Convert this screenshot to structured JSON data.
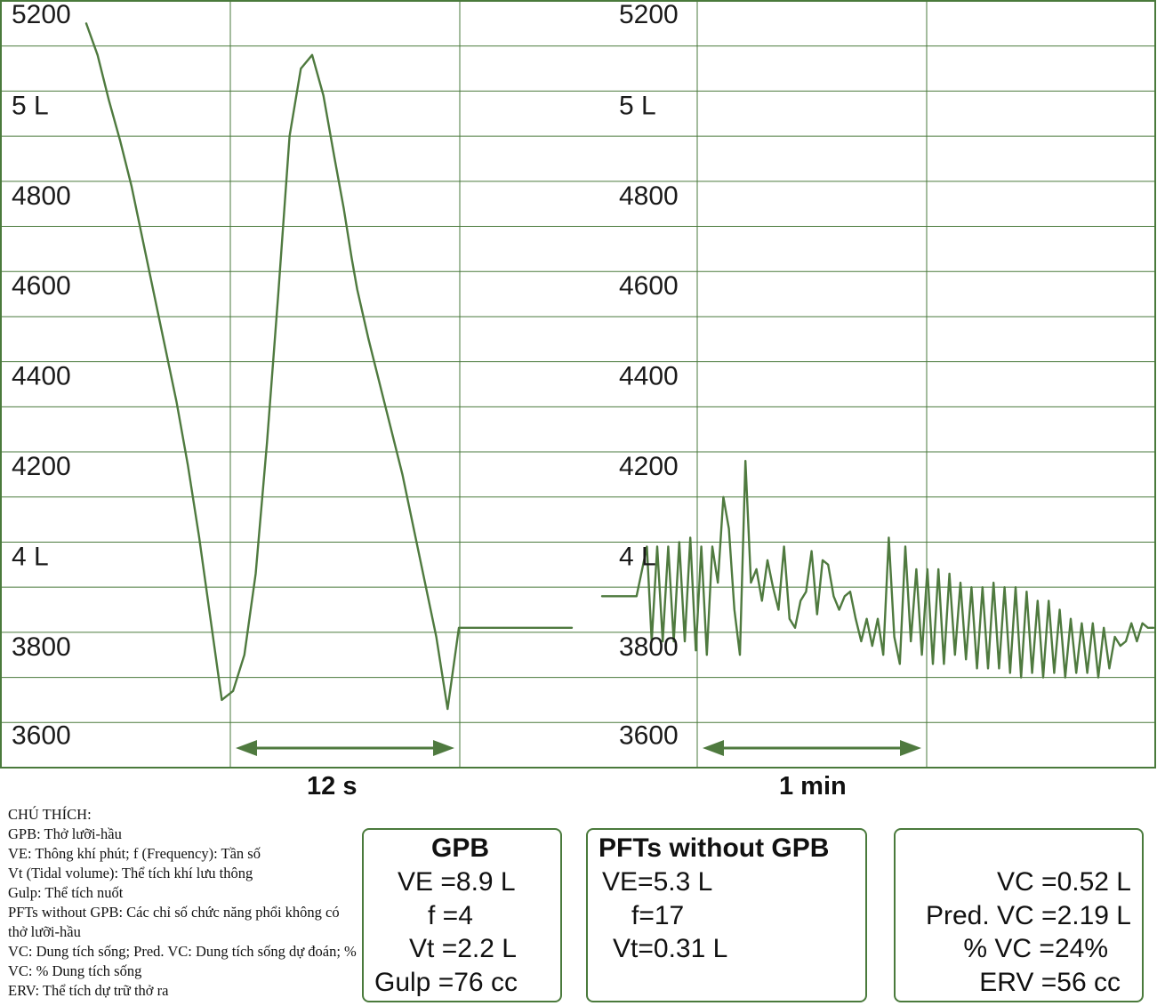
{
  "chart_data": [
    {
      "type": "line",
      "title": "",
      "xlabel": "",
      "ylabel": "",
      "ylim": [
        3550,
        5250
      ],
      "grid": true,
      "y_ticks": [
        "5200",
        "5 L",
        "4800",
        "4600",
        "4400",
        "4200",
        "4 L",
        "3800",
        "3600"
      ],
      "scale_bar": "12 s",
      "series": [
        {
          "x": [
            0,
            1,
            2,
            3,
            4,
            5,
            6,
            7,
            8,
            9,
            10,
            11,
            12,
            13,
            14,
            15,
            16,
            17,
            18,
            19,
            20,
            21,
            22,
            22.8,
            23.5,
            24,
            25,
            26,
            27,
            28,
            29,
            30,
            31,
            32,
            33,
            34,
            35,
            36,
            37,
            38,
            39,
            40,
            41,
            42,
            43
          ],
          "y": [
            5200,
            5130,
            5030,
            4940,
            4840,
            4720,
            4600,
            4480,
            4360,
            4220,
            4060,
            3880,
            3700,
            3720,
            3800,
            3980,
            4270,
            4600,
            4950,
            5100,
            5130,
            5040,
            4900,
            4790,
            4680,
            4610,
            4500,
            4400,
            4300,
            4200,
            4080,
            3960,
            3840,
            3680,
            3860,
            3860,
            3860,
            3860,
            3860,
            3860,
            3860,
            3860,
            3860,
            3860,
            3860
          ]
        }
      ]
    },
    {
      "type": "line",
      "title": "",
      "xlabel": "",
      "ylabel": "",
      "ylim": [
        3550,
        5250
      ],
      "grid": true,
      "y_ticks": [
        "5200",
        "5 L",
        "4800",
        "4600",
        "4400",
        "4200",
        "4 L",
        "3800",
        "3600"
      ],
      "scale_bar": "1 min",
      "series": [
        {
          "x": [
            0,
            0.5,
            0.65,
            0.72,
            0.8,
            0.88,
            0.96,
            1.04,
            1.12,
            1.2,
            1.28,
            1.36,
            1.44,
            1.52,
            1.6,
            1.68,
            1.76,
            1.84,
            1.92,
            2.0,
            2.08,
            2.16,
            2.24,
            2.32,
            2.4,
            2.48,
            2.56,
            2.64,
            2.72,
            2.8,
            2.88,
            2.96,
            3.04,
            3.12,
            3.2,
            3.28,
            3.36,
            3.44,
            3.52,
            3.6,
            3.68,
            3.76,
            3.84,
            3.92,
            4.0,
            4.08,
            4.16,
            4.24,
            4.32,
            4.4,
            4.48,
            4.56,
            4.64,
            4.72,
            4.8,
            4.88,
            4.96,
            5.04,
            5.12,
            5.2,
            5.28,
            5.36,
            5.44,
            5.52,
            5.6,
            5.68,
            5.76,
            5.84,
            5.92,
            6.0,
            6.08,
            6.16,
            6.24,
            6.32,
            6.4,
            6.48,
            6.56,
            6.64,
            6.72,
            6.8,
            6.88,
            6.96,
            7.04,
            7.12,
            7.2,
            7.28,
            7.36,
            7.44,
            7.52,
            7.6,
            7.68,
            7.76,
            7.84,
            7.92,
            8.0
          ],
          "y": [
            3930,
            3930,
            4040,
            3830,
            4040,
            3830,
            4040,
            3830,
            4050,
            3830,
            4060,
            3810,
            4040,
            3800,
            4040,
            3960,
            4150,
            4080,
            3900,
            3800,
            4230,
            3960,
            3990,
            3920,
            4010,
            3950,
            3900,
            4040,
            3880,
            3860,
            3920,
            3940,
            4030,
            3890,
            4010,
            4000,
            3930,
            3900,
            3930,
            3940,
            3880,
            3830,
            3880,
            3820,
            3880,
            3800,
            4060,
            3840,
            3780,
            4040,
            3830,
            3990,
            3800,
            3990,
            3780,
            3990,
            3780,
            3980,
            3800,
            3960,
            3790,
            3950,
            3770,
            3950,
            3770,
            3960,
            3770,
            3950,
            3760,
            3950,
            3750,
            3940,
            3760,
            3920,
            3750,
            3920,
            3760,
            3900,
            3750,
            3880,
            3760,
            3870,
            3760,
            3870,
            3750,
            3860,
            3770,
            3840,
            3820,
            3830,
            3870,
            3830,
            3870,
            3860,
            3860
          ]
        }
      ]
    }
  ],
  "legend": {
    "title": "CHÚ THÍCH:",
    "lines": [
      "GPB: Thở lưỡi-hầu",
      "VE: Thông khí phút; f (Frequency): Tần số",
      "Vt (Tidal volume): Thể tích khí lưu thông",
      "Gulp: Thể tích nuốt",
      "PFTs without GPB: Các chỉ số chức năng phổi không có thở lưỡi-hầu",
      "VC: Dung tích sống; Pred. VC: Dung tích sống dự đoán; % VC: % Dung tích sống",
      "ERV: Thể tích dự trữ thở ra"
    ]
  },
  "boxes": {
    "gpb": {
      "title": "GPB",
      "rows": [
        {
          "k": "VE",
          "v": "8.9 L"
        },
        {
          "k": "f",
          "v": "4"
        },
        {
          "k": "Vt",
          "v": "2.2 L"
        },
        {
          "k": "Gulp",
          "v": "76 cc"
        }
      ]
    },
    "pfts": {
      "title": "PFTs without GPB",
      "rows": [
        {
          "k": "VE",
          "v": "5.3 L"
        },
        {
          "k": "f",
          "v": "17"
        },
        {
          "k": "Vt",
          "v": "0.31 L"
        }
      ]
    },
    "vc": {
      "rows": [
        {
          "k": "VC",
          "v": "0.52 L"
        },
        {
          "k": "Pred. VC",
          "v": "2.19 L"
        },
        {
          "k": "% VC",
          "v": "24%"
        },
        {
          "k": "ERV",
          "v": "56 cc"
        }
      ]
    }
  },
  "colors": {
    "grid": "#4a7a3c",
    "trace": "#4f7a3f",
    "arrow": "#4f7a3f"
  }
}
